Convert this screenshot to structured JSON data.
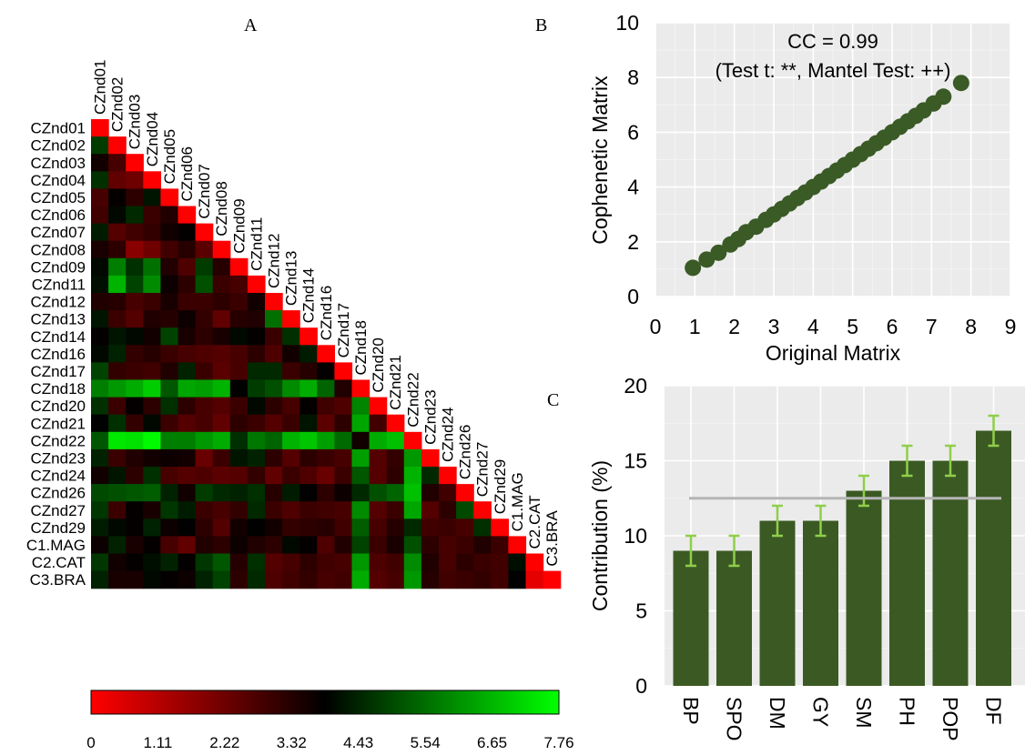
{
  "panels": {
    "a": "A",
    "b": "B",
    "c": "C"
  },
  "chart_data": [
    {
      "panel": "A",
      "type": "heatmap",
      "labels": [
        "CZnd01",
        "CZnd02",
        "CZnd03",
        "CZnd04",
        "CZnd05",
        "CZnd06",
        "CZnd07",
        "CZnd08",
        "CZnd09",
        "CZnd11",
        "CZnd12",
        "CZnd13",
        "CZnd14",
        "CZnd16",
        "CZnd17",
        "CZnd18",
        "CZnd20",
        "CZnd21",
        "CZnd22",
        "CZnd23",
        "CZnd24",
        "CZnd26",
        "CZnd27",
        "CZnd29",
        "C1.MAG",
        "C2.CAT",
        "C3.BRA"
      ],
      "values": [
        [
          0
        ],
        [
          4.8,
          0
        ],
        [
          3.6,
          2.8,
          0
        ],
        [
          4.6,
          2.4,
          2.2,
          0
        ],
        [
          2.8,
          3.8,
          3.2,
          4.2,
          0
        ],
        [
          2.9,
          4.0,
          4.5,
          3.0,
          3.4,
          0
        ],
        [
          4.3,
          2.6,
          2.9,
          3.1,
          3.6,
          3.8,
          0
        ],
        [
          3.5,
          3.2,
          1.8,
          2.2,
          2.9,
          3.3,
          2.5,
          0
        ],
        [
          4.0,
          5.8,
          4.6,
          5.6,
          3.4,
          2.7,
          4.8,
          3.3,
          0
        ],
        [
          4.1,
          6.6,
          4.9,
          6.0,
          3.7,
          3.2,
          5.1,
          3.0,
          2.8,
          0
        ],
        [
          3.4,
          3.3,
          2.8,
          3.0,
          3.5,
          3.0,
          3.0,
          3.2,
          3.0,
          3.6,
          0
        ],
        [
          4.2,
          3.0,
          2.6,
          3.4,
          3.3,
          3.7,
          3.1,
          2.4,
          3.3,
          3.4,
          5.6,
          0
        ],
        [
          3.8,
          4.2,
          4.0,
          3.6,
          4.9,
          3.5,
          3.2,
          3.5,
          4.0,
          3.8,
          3.0,
          4.6,
          0
        ],
        [
          4.0,
          4.4,
          3.1,
          3.3,
          3.0,
          2.8,
          2.7,
          2.6,
          2.8,
          3.2,
          2.7,
          3.6,
          4.3,
          0
        ],
        [
          4.9,
          3.1,
          3.0,
          2.9,
          3.4,
          4.4,
          3.0,
          2.5,
          2.8,
          4.5,
          4.5,
          3.0,
          3.3,
          3.8,
          0
        ],
        [
          5.8,
          6.2,
          6.5,
          7.0,
          5.2,
          6.4,
          6.3,
          6.6,
          3.9,
          4.8,
          5.1,
          6.0,
          6.5,
          5.4,
          3.4,
          0
        ],
        [
          4.6,
          3.0,
          3.8,
          3.2,
          4.6,
          3.2,
          2.8,
          2.6,
          3.0,
          4.0,
          3.2,
          2.8,
          3.8,
          2.9,
          2.7,
          5.9,
          0
        ],
        [
          3.9,
          4.6,
          3.1,
          4.0,
          3.0,
          2.6,
          2.8,
          2.4,
          3.2,
          3.0,
          2.6,
          3.0,
          4.2,
          2.5,
          3.2,
          6.4,
          2.9,
          0
        ],
        [
          5.2,
          7.4,
          7.3,
          7.7,
          5.8,
          5.8,
          6.2,
          6.5,
          4.6,
          5.7,
          5.4,
          6.6,
          6.9,
          6.3,
          5.5,
          3.6,
          6.5,
          6.8,
          0
        ],
        [
          4.4,
          3.0,
          3.4,
          3.6,
          3.7,
          3.6,
          2.3,
          3.0,
          4.2,
          4.4,
          3.2,
          2.6,
          3.2,
          3.0,
          2.8,
          6.3,
          2.6,
          3.1,
          6.2,
          0
        ],
        [
          3.6,
          4.2,
          3.2,
          4.6,
          2.8,
          2.6,
          2.7,
          2.5,
          2.6,
          3.1,
          2.4,
          3.0,
          2.7,
          2.3,
          3.0,
          5.2,
          2.6,
          3.2,
          6.6,
          4.5,
          0
        ],
        [
          5.0,
          5.1,
          5.2,
          5.3,
          4.4,
          3.6,
          4.8,
          4.5,
          4.4,
          4.6,
          3.3,
          4.3,
          3.9,
          3.2,
          3.7,
          4.5,
          5.1,
          5.4,
          6.8,
          3.4,
          2.9,
          0
        ],
        [
          4.7,
          3.0,
          3.8,
          3.5,
          4.7,
          4.3,
          3.0,
          2.8,
          3.1,
          4.5,
          3.0,
          2.7,
          3.0,
          2.9,
          2.8,
          6.0,
          2.6,
          3.0,
          6.4,
          2.6,
          3.2,
          5.0,
          0
        ],
        [
          4.3,
          4.0,
          3.8,
          4.4,
          3.7,
          3.9,
          3.2,
          2.6,
          3.6,
          3.9,
          3.6,
          3.1,
          3.2,
          3.3,
          2.9,
          5.3,
          2.8,
          3.3,
          4.5,
          2.9,
          3.0,
          2.8,
          4.6,
          0
        ],
        [
          3.7,
          4.4,
          3.5,
          3.8,
          2.8,
          2.4,
          3.4,
          3.2,
          3.7,
          3.4,
          3.2,
          4.0,
          3.8,
          2.7,
          3.4,
          4.9,
          3.0,
          3.5,
          5.1,
          3.2,
          2.8,
          3.0,
          3.4,
          3.0,
          0
        ],
        [
          4.7,
          3.6,
          3.8,
          4.1,
          4.4,
          3.8,
          4.7,
          5.2,
          3.3,
          4.6,
          2.6,
          2.8,
          3.2,
          2.9,
          2.8,
          6.2,
          2.7,
          2.9,
          6.0,
          3.4,
          2.8,
          3.2,
          3.0,
          2.9,
          4.1,
          0
        ],
        [
          4.4,
          3.5,
          3.5,
          4.0,
          3.8,
          3.7,
          4.4,
          4.9,
          3.2,
          4.5,
          2.7,
          2.9,
          3.1,
          2.8,
          2.9,
          6.5,
          2.6,
          2.8,
          6.2,
          3.3,
          2.9,
          3.0,
          3.1,
          2.9,
          3.9,
          0.4,
          0
        ]
      ],
      "colorbar": {
        "colors": [
          "#ff0000",
          "#000000",
          "#00ff00"
        ],
        "ticks": [
          "0",
          "1.11",
          "2.22",
          "3.32",
          "4.43",
          "5.54",
          "6.65",
          "7.76"
        ],
        "range": [
          0,
          7.76
        ]
      }
    },
    {
      "panel": "B",
      "type": "scatter",
      "xlabel": "Original Matrix",
      "ylabel": "Cophenetic Matrix",
      "xlim": [
        0,
        9
      ],
      "ylim": [
        0,
        10
      ],
      "xticks": [
        "0",
        "1",
        "2",
        "3",
        "4",
        "5",
        "6",
        "7",
        "8",
        "9"
      ],
      "yticks": [
        "0",
        "2",
        "4",
        "6",
        "8",
        "10"
      ],
      "annotation_line1": "CC = 0.99",
      "annotation_line2": "(Test t: **, Mantel Test: ++)",
      "point_color": "#3a5a26",
      "points": [
        [
          0.95,
          1.05
        ],
        [
          1.3,
          1.35
        ],
        [
          1.6,
          1.6
        ],
        [
          1.9,
          1.9
        ],
        [
          2.1,
          2.1
        ],
        [
          2.3,
          2.35
        ],
        [
          2.55,
          2.55
        ],
        [
          2.8,
          2.8
        ],
        [
          3.0,
          3.0
        ],
        [
          3.2,
          3.2
        ],
        [
          3.4,
          3.4
        ],
        [
          3.6,
          3.6
        ],
        [
          3.8,
          3.8
        ],
        [
          4.0,
          4.0
        ],
        [
          4.2,
          4.2
        ],
        [
          4.4,
          4.4
        ],
        [
          4.6,
          4.6
        ],
        [
          4.8,
          4.8
        ],
        [
          5.0,
          5.0
        ],
        [
          5.2,
          5.2
        ],
        [
          5.4,
          5.4
        ],
        [
          5.6,
          5.6
        ],
        [
          5.8,
          5.8
        ],
        [
          6.0,
          6.0
        ],
        [
          6.2,
          6.2
        ],
        [
          6.4,
          6.4
        ],
        [
          6.6,
          6.6
        ],
        [
          6.8,
          6.8
        ],
        [
          7.05,
          7.05
        ],
        [
          7.3,
          7.3
        ],
        [
          7.75,
          7.8
        ]
      ]
    },
    {
      "panel": "C",
      "type": "bar",
      "categories": [
        "BP",
        "SPO",
        "DM",
        "GY",
        "SM",
        "PH",
        "POP",
        "DF"
      ],
      "values": [
        9,
        9,
        11,
        11,
        13,
        15,
        15,
        17
      ],
      "errors": [
        1,
        1,
        1,
        1,
        1,
        1,
        1,
        1
      ],
      "reference_line": 12.5,
      "ylabel": "Contribution (%)",
      "ylim": [
        0,
        20
      ],
      "yticks": [
        "0",
        "5",
        "10",
        "15",
        "20"
      ],
      "bar_color": "#3b5a23",
      "error_color": "#8fcf4a",
      "line_color": "#b5b5b5"
    }
  ]
}
